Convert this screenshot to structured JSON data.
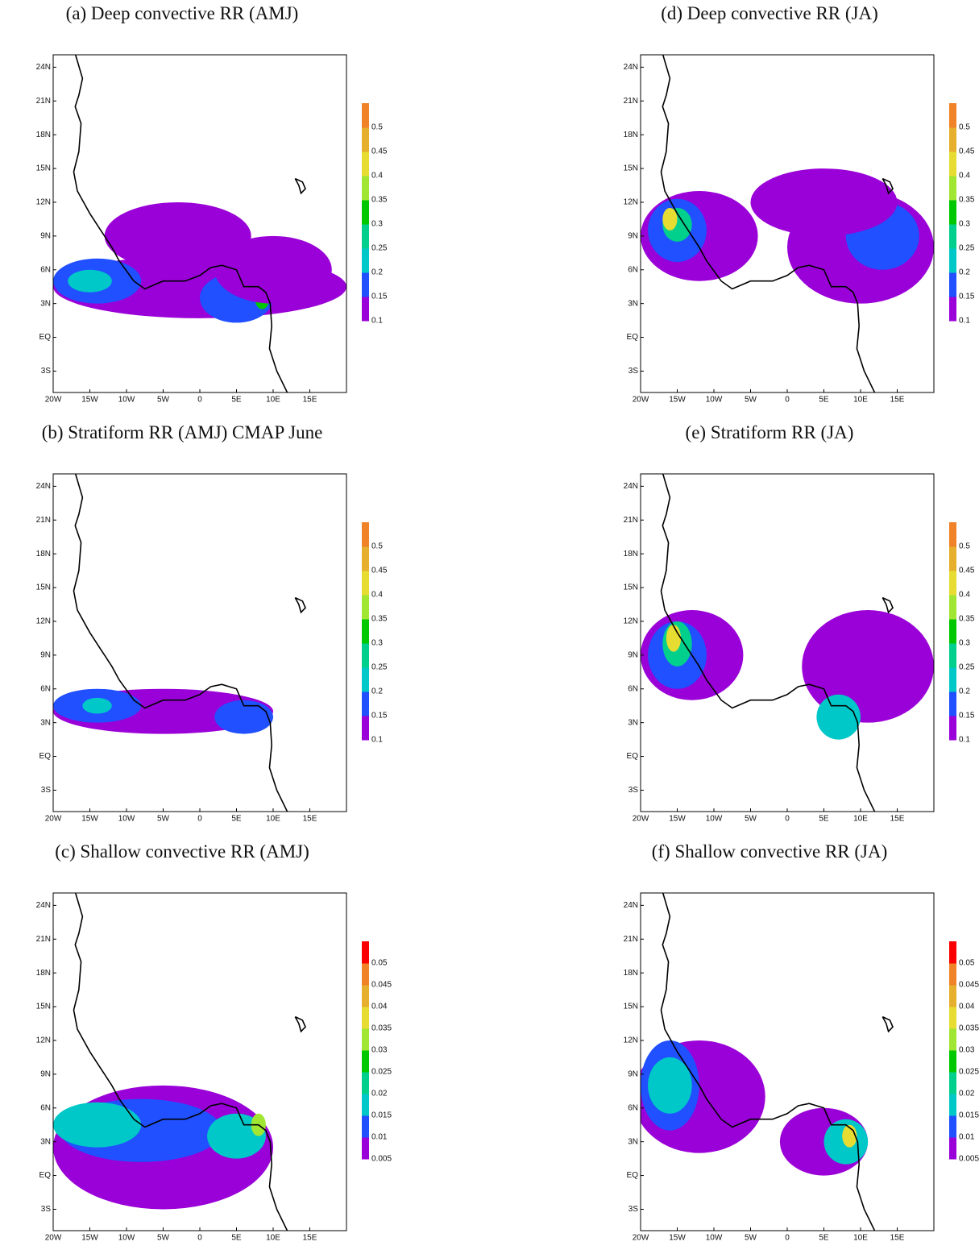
{
  "panels": [
    {
      "title": "(a) Deep convective RR (AMJ)",
      "lon_ticks": [
        "20W",
        "15W",
        "10W",
        "5W",
        "0",
        "5E",
        "10E",
        "15E"
      ],
      "lat_ticks": [
        "24N",
        "21N",
        "18N",
        "15N",
        "12N",
        "9N",
        "6N",
        "3N",
        "EQ",
        "3S"
      ],
      "colorbar": {
        "levels": [
          0.1,
          0.15,
          0.2,
          0.25,
          0.3,
          0.35,
          0.4,
          0.45,
          0.5
        ],
        "colors": [
          "#9a00d8",
          "#2050ff",
          "#00c8c8",
          "#00d08c",
          "#00c800",
          "#a0e632",
          "#e6dc32",
          "#e6af2d",
          "#f08228"
        ]
      }
    },
    {
      "title": "(b) Stratiform RR (AMJ) CMAP June",
      "lon_ticks": [
        "20W",
        "15W",
        "10W",
        "5W",
        "0",
        "5E",
        "10E",
        "15E"
      ],
      "lat_ticks": [
        "24N",
        "21N",
        "18N",
        "15N",
        "12N",
        "9N",
        "6N",
        "3N",
        "EQ",
        "3S"
      ],
      "colorbar": {
        "levels": [
          0.1,
          0.15,
          0.2,
          0.25,
          0.3,
          0.35,
          0.4,
          0.45,
          0.5
        ],
        "colors": [
          "#9a00d8",
          "#2050ff",
          "#00c8c8",
          "#00d08c",
          "#00c800",
          "#a0e632",
          "#e6dc32",
          "#e6af2d",
          "#f08228"
        ]
      }
    },
    {
      "title": "(c) Shallow convective RR (AMJ)",
      "lon_ticks": [
        "20W",
        "15W",
        "10W",
        "5W",
        "0",
        "5E",
        "10E",
        "15E"
      ],
      "lat_ticks": [
        "24N",
        "21N",
        "18N",
        "15N",
        "12N",
        "9N",
        "6N",
        "3N",
        "EQ",
        "3S"
      ],
      "colorbar": {
        "levels": [
          0.005,
          0.01,
          0.015,
          0.02,
          0.025,
          0.03,
          0.035,
          0.04,
          0.045,
          0.05
        ],
        "colors": [
          "#9a00d8",
          "#2050ff",
          "#00c8c8",
          "#00d08c",
          "#00c800",
          "#a0e632",
          "#e6dc32",
          "#e6af2d",
          "#f08228",
          "#fa0000"
        ]
      }
    },
    {
      "title": "(d) Deep convective RR (JA)",
      "lon_ticks": [
        "20W",
        "15W",
        "10W",
        "5W",
        "0",
        "5E",
        "10E",
        "15E"
      ],
      "lat_ticks": [
        "24N",
        "21N",
        "18N",
        "15N",
        "12N",
        "9N",
        "6N",
        "3N",
        "EQ",
        "3S"
      ],
      "colorbar": {
        "levels": [
          0.1,
          0.15,
          0.2,
          0.25,
          0.3,
          0.35,
          0.4,
          0.45,
          0.5
        ],
        "colors": [
          "#9a00d8",
          "#2050ff",
          "#00c8c8",
          "#00d08c",
          "#00c800",
          "#a0e632",
          "#e6dc32",
          "#e6af2d",
          "#f08228"
        ]
      }
    },
    {
      "title": "(e) Stratiform RR (JA)",
      "lon_ticks": [
        "20W",
        "15W",
        "10W",
        "5W",
        "0",
        "5E",
        "10E",
        "15E"
      ],
      "lat_ticks": [
        "24N",
        "21N",
        "18N",
        "15N",
        "12N",
        "9N",
        "6N",
        "3N",
        "EQ",
        "3S"
      ],
      "colorbar": {
        "levels": [
          0.1,
          0.15,
          0.2,
          0.25,
          0.3,
          0.35,
          0.4,
          0.45,
          0.5
        ],
        "colors": [
          "#9a00d8",
          "#2050ff",
          "#00c8c8",
          "#00d08c",
          "#00c800",
          "#a0e632",
          "#e6dc32",
          "#e6af2d",
          "#f08228"
        ]
      }
    },
    {
      "title": "(f) Shallow convective RR (JA)",
      "lon_ticks": [
        "20W",
        "15W",
        "10W",
        "5W",
        "0",
        "5E",
        "10E",
        "15E"
      ],
      "lat_ticks": [
        "24N",
        "21N",
        "18N",
        "15N",
        "12N",
        "9N",
        "6N",
        "3N",
        "EQ",
        "3S"
      ],
      "colorbar": {
        "levels": [
          0.005,
          0.01,
          0.015,
          0.02,
          0.025,
          0.03,
          0.035,
          0.04,
          0.045,
          0.05
        ],
        "colors": [
          "#9a00d8",
          "#2050ff",
          "#00c8c8",
          "#00d08c",
          "#00c800",
          "#a0e632",
          "#e6dc32",
          "#e6af2d",
          "#f08228",
          "#fa0000"
        ]
      }
    }
  ]
}
